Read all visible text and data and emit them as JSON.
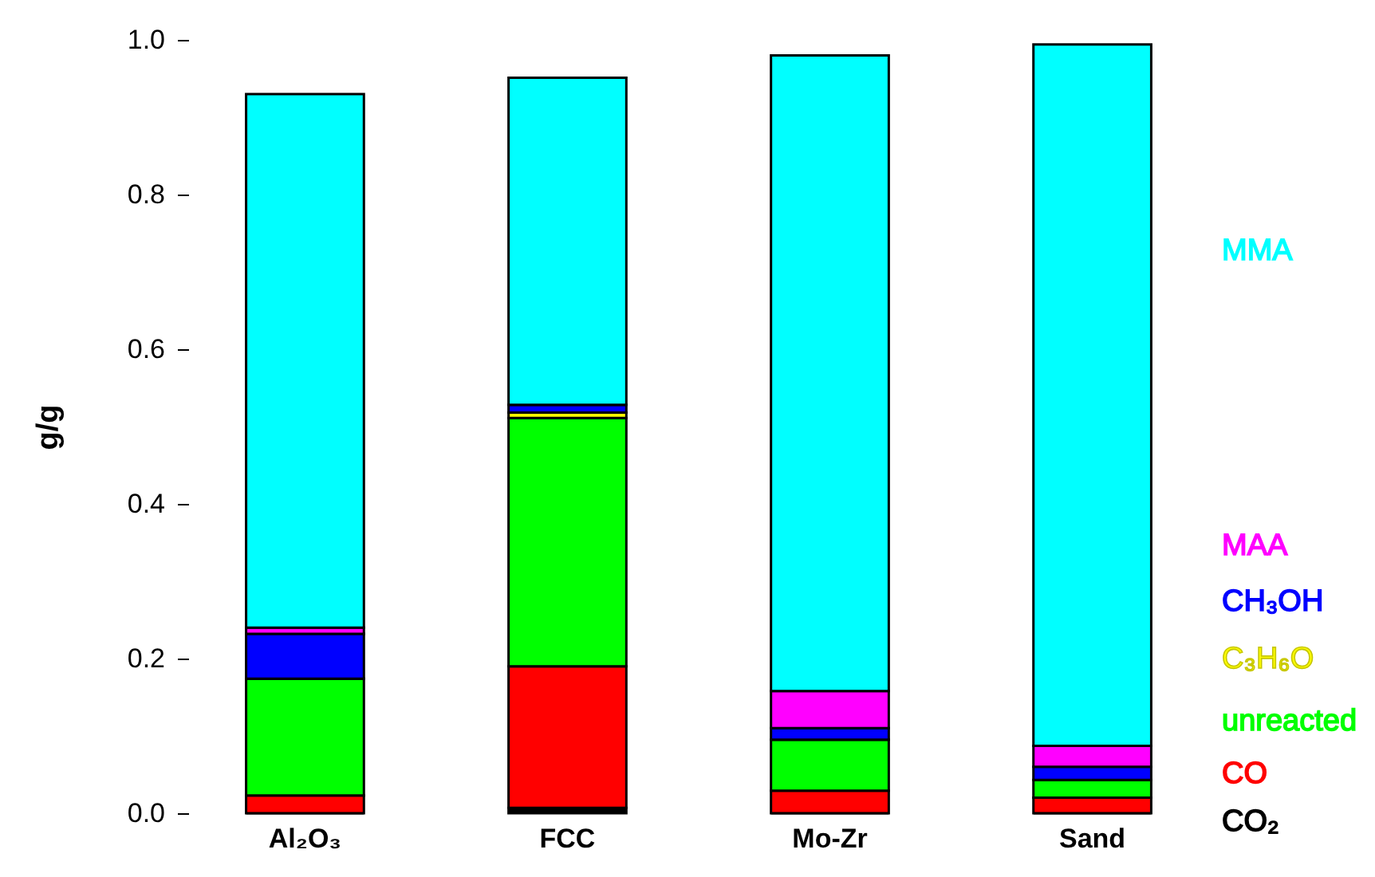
{
  "chart_data": {
    "type": "bar",
    "stacked": true,
    "ylabel": "g/g",
    "categories": [
      "Al₂O₃",
      "FCC",
      "Mo-Zr",
      "Sand"
    ],
    "ylim": [
      0,
      1.0
    ],
    "yticks": [
      {
        "value": 0,
        "label": "0.0"
      },
      {
        "value": 0.2,
        "label": "0.2"
      },
      {
        "value": 0.4,
        "label": "0.4"
      },
      {
        "value": 0.6,
        "label": "0.6"
      },
      {
        "value": 0.8,
        "label": "0.8"
      },
      {
        "value": 1.0,
        "label": "1.0"
      }
    ],
    "legend": "right",
    "grid": false,
    "series": [
      {
        "name": "CO₂",
        "color": "#000000",
        "values": [
          0,
          0.007,
          0,
          0
        ]
      },
      {
        "name": "CO",
        "color": "#ff0000",
        "values": [
          0.023,
          0.183,
          0.029,
          0.02
        ]
      },
      {
        "name": "unreacted",
        "color": "#00ff00",
        "values": [
          0.151,
          0.321,
          0.066,
          0.023
        ]
      },
      {
        "name": "C₃H₆O",
        "color": "#ffff00",
        "values": [
          0,
          0.007,
          0,
          0
        ]
      },
      {
        "name": "CH₃OH",
        "color": "#0000ff",
        "values": [
          0.058,
          0.01,
          0.015,
          0.017
        ]
      },
      {
        "name": "MAA",
        "color": "#ff00ff",
        "values": [
          0.008,
          0,
          0.048,
          0.027
        ]
      },
      {
        "name": "MMA",
        "color": "#00ffff",
        "values": [
          0.69,
          0.423,
          0.822,
          0.907
        ]
      }
    ]
  }
}
